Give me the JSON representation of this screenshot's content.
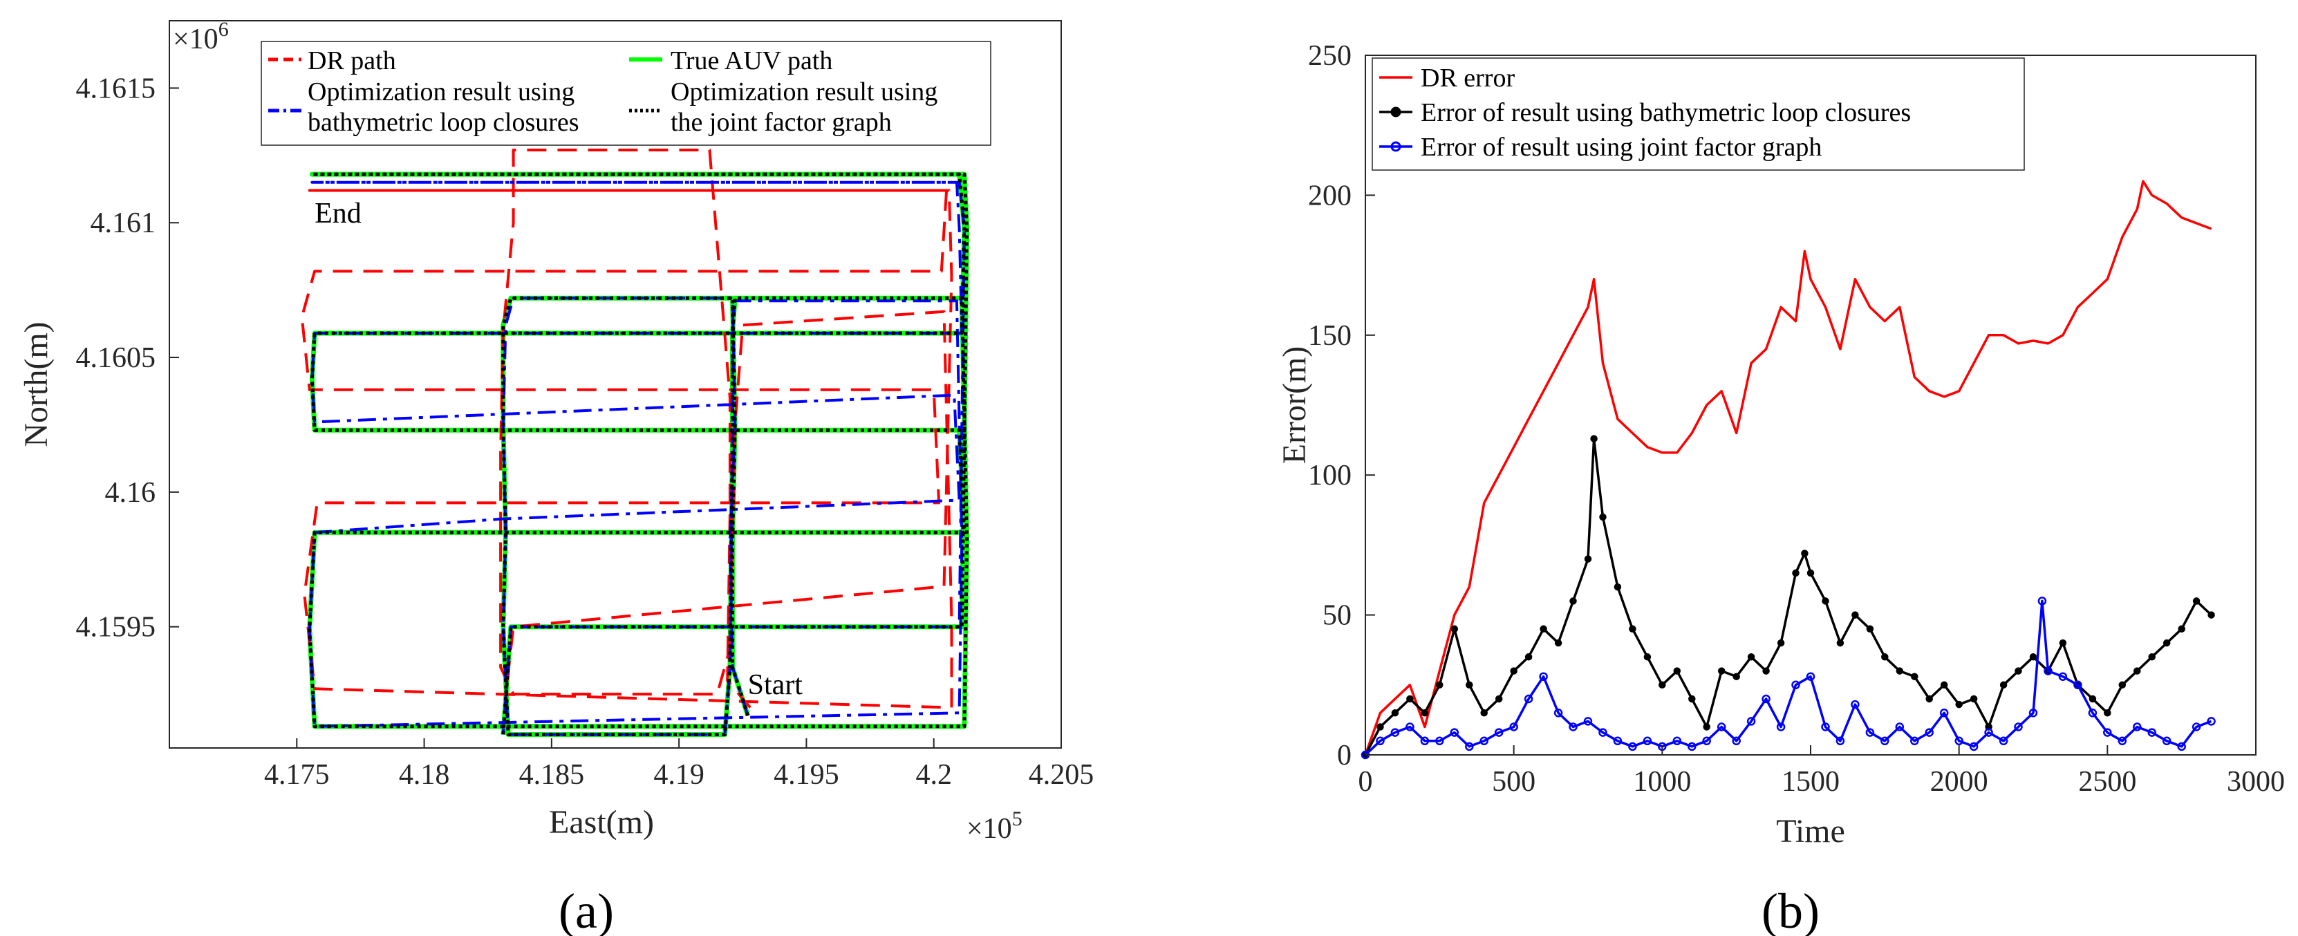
{
  "chart_data": [
    {
      "id": "a",
      "type": "line",
      "caption": "(a)",
      "xlabel": "East(m)",
      "ylabel": "North(m)",
      "x_exponent": "×10",
      "x_exponent_power": "5",
      "y_exponent": "×10",
      "y_exponent_power": "6",
      "xlim": [
        4.17,
        4.205
      ],
      "ylim": [
        4.15905,
        4.16175
      ],
      "x_ticks": [
        "4.175",
        "4.18",
        "4.185",
        "4.19",
        "4.195",
        "4.2",
        "4.205"
      ],
      "x_tick_values": [
        4.175,
        4.18,
        4.185,
        4.19,
        4.195,
        4.2,
        4.205
      ],
      "y_ticks": [
        "4.1595",
        "4.16",
        "4.1605",
        "4.161",
        "4.1615"
      ],
      "y_tick_values": [
        4.1595,
        4.16,
        4.1605,
        4.161,
        4.1615
      ],
      "annotations": [
        {
          "text": "End",
          "x": 4.1757,
          "y": 4.161
        },
        {
          "text": "Start",
          "x": 4.1927,
          "y": 4.15925
        }
      ],
      "legend": [
        {
          "label": "DR path",
          "color": "#ff0000",
          "style": "dashed"
        },
        {
          "label": "True AUV path",
          "color": "#00ff00",
          "style": "solid"
        },
        {
          "label": "Optimization result using",
          "label2": "bathymetric loop closures",
          "color": "#0000ff",
          "style": "dashdot"
        },
        {
          "label": "Optimization result using",
          "label2": "the joint factor graph",
          "color": "#000000",
          "style": "dotted"
        }
      ],
      "series": [
        {
          "name": "True AUV path",
          "color": "#00ff00",
          "x": [
            4.1927,
            4.1921,
            4.1921,
            4.1922,
            4.1921,
            4.1834,
            4.1831,
            4.1831,
            4.1832,
            4.1831,
            4.1833,
            4.1918,
            4.192,
            4.1921,
            4.1921,
            4.1922,
            4.2011,
            4.2013,
            4.2012,
            4.1757,
            4.1755,
            4.1757,
            4.183,
            4.2012,
            4.201,
            4.1757,
            4.1756,
            4.1757,
            4.2011,
            4.2012,
            4.201,
            4.1757,
            4.1756,
            4.1757,
            4.1834,
            4.2012,
            4.2013,
            4.2011,
            4.1834,
            4.1831
          ],
          "y": [
            4.15917,
            4.15935,
            4.15982,
            4.16025,
            4.16072,
            4.16072,
            4.16062,
            4.16025,
            4.15985,
            4.1595,
            4.1591,
            4.1591,
            4.15935,
            4.16022,
            4.16059,
            4.16072,
            4.16072,
            4.15982,
            4.15913,
            4.15913,
            4.15949,
            4.15985,
            4.15985,
            4.15985,
            4.16023,
            4.16023,
            4.16042,
            4.16059,
            4.16059,
            4.16098,
            4.16118,
            4.16118,
            4.16118,
            4.16118,
            4.16118,
            4.16118,
            4.16098,
            4.1595,
            4.1595,
            4.1591
          ]
        },
        {
          "name": "DR path",
          "color": "#ff0000",
          "x": [
            4.1928,
            4.1919,
            4.192,
            4.192,
            4.1912,
            4.1835,
            4.1835,
            4.1831,
            4.183,
            4.183,
            4.183,
            4.1835,
            4.1915,
            4.192,
            4.1922,
            4.1925,
            4.2004,
            4.2007,
            4.2007,
            4.1757,
            4.1753,
            4.1758,
            4.1829,
            4.2002,
            4.2,
            4.1755,
            4.1752,
            4.1757,
            4.2003,
            4.2005,
            4.2004,
            4.176,
            4.1758,
            4.1755,
            4.183,
            4.2006,
            4.2007,
            4.2004,
            4.1835,
            4.1832
          ],
          "y": [
            4.1592,
            4.1593,
            4.15992,
            4.16035,
            4.16127,
            4.16127,
            4.161,
            4.1606,
            4.16015,
            4.15965,
            4.15935,
            4.15925,
            4.15925,
            4.15942,
            4.16025,
            4.16062,
            4.16067,
            4.15952,
            4.1592,
            4.15927,
            4.15962,
            4.15996,
            4.15996,
            4.15996,
            4.16038,
            4.16038,
            4.16065,
            4.16082,
            4.16082,
            4.16112,
            4.16112,
            4.16112,
            4.16112,
            4.16112,
            4.16112,
            4.16112,
            4.1608,
            4.15965,
            4.1595,
            4.15925
          ]
        },
        {
          "name": "Optimization result using bathymetric loop closures",
          "color": "#0000ff",
          "x": [
            4.1927,
            4.1921,
            4.192,
            4.1922,
            4.1921,
            4.1835,
            4.1832,
            4.1831,
            4.1832,
            4.1831,
            4.1833,
            4.1918,
            4.192,
            4.1921,
            4.1921,
            4.1922,
            4.2009,
            4.2011,
            4.201,
            4.1757,
            4.1755,
            4.1757,
            4.183,
            4.201,
            4.2008,
            4.1757,
            4.1756,
            4.1757,
            4.2011,
            4.201,
            4.2009,
            4.1757,
            4.1756,
            4.1757,
            4.1834,
            4.201,
            4.2012,
            4.201,
            4.1834,
            4.1831
          ],
          "y": [
            4.15917,
            4.15935,
            4.15982,
            4.16025,
            4.16072,
            4.16072,
            4.16062,
            4.16025,
            4.15985,
            4.1595,
            4.1591,
            4.1591,
            4.15935,
            4.16022,
            4.16059,
            4.16071,
            4.16071,
            4.15982,
            4.15918,
            4.15913,
            4.15949,
            4.15985,
            4.1599,
            4.15997,
            4.16036,
            4.16026,
            4.16042,
            4.16059,
            4.16059,
            4.16098,
            4.16115,
            4.16115,
            4.16115,
            4.16115,
            4.16115,
            4.16115,
            4.16098,
            4.1595,
            4.1595,
            4.1591
          ]
        },
        {
          "name": "Optimization result using the joint factor graph",
          "color": "#000000",
          "x": [
            4.1927,
            4.1921,
            4.1921,
            4.1922,
            4.1921,
            4.1834,
            4.1831,
            4.1831,
            4.1832,
            4.1831,
            4.1833,
            4.1918,
            4.192,
            4.1921,
            4.1921,
            4.1922,
            4.2011,
            4.2013,
            4.2012,
            4.1757,
            4.1755,
            4.1757,
            4.183,
            4.2012,
            4.201,
            4.1757,
            4.1756,
            4.1757,
            4.2011,
            4.2012,
            4.201,
            4.1757,
            4.1756,
            4.1757,
            4.1834,
            4.2012,
            4.2013,
            4.2011,
            4.1834,
            4.1831
          ],
          "y": [
            4.15917,
            4.15935,
            4.15982,
            4.16025,
            4.16072,
            4.16072,
            4.16062,
            4.16025,
            4.15985,
            4.1595,
            4.1591,
            4.1591,
            4.15935,
            4.16022,
            4.16059,
            4.16072,
            4.16072,
            4.15982,
            4.15913,
            4.15913,
            4.15949,
            4.15985,
            4.15985,
            4.15985,
            4.16023,
            4.16023,
            4.16042,
            4.16059,
            4.16059,
            4.16098,
            4.16118,
            4.16118,
            4.16118,
            4.16118,
            4.16118,
            4.16118,
            4.16098,
            4.1595,
            4.1595,
            4.1591
          ]
        }
      ]
    },
    {
      "id": "b",
      "type": "line",
      "caption": "(b)",
      "xlabel": "Time",
      "ylabel": "Error(m)",
      "xlim": [
        0,
        3000
      ],
      "ylim": [
        0,
        250
      ],
      "x_ticks": [
        "0",
        "500",
        "1000",
        "1500",
        "2000",
        "2500",
        "3000"
      ],
      "x_tick_values": [
        0,
        500,
        1000,
        1500,
        2000,
        2500,
        3000
      ],
      "y_ticks": [
        "0",
        "50",
        "100",
        "150",
        "200",
        "250"
      ],
      "y_tick_values": [
        0,
        50,
        100,
        150,
        200,
        250
      ],
      "legend": [
        {
          "label": "DR error",
          "color": "#ff0000",
          "marker": "none"
        },
        {
          "label": "Error of result using bathymetric loop closures",
          "color": "#000000",
          "marker": "dot"
        },
        {
          "label": "Error of result using joint factor graph",
          "color": "#0000ff",
          "marker": "circle"
        }
      ],
      "series": [
        {
          "name": "DR error",
          "color": "#ff0000",
          "x": [
            0,
            50,
            100,
            150,
            200,
            250,
            300,
            350,
            400,
            450,
            500,
            550,
            600,
            650,
            700,
            750,
            770,
            800,
            850,
            900,
            950,
            1000,
            1050,
            1100,
            1150,
            1200,
            1250,
            1300,
            1350,
            1400,
            1450,
            1480,
            1500,
            1550,
            1600,
            1650,
            1700,
            1750,
            1800,
            1850,
            1900,
            1950,
            2000,
            2050,
            2100,
            2150,
            2200,
            2250,
            2300,
            2350,
            2400,
            2450,
            2500,
            2550,
            2600,
            2620,
            2650,
            2700,
            2750,
            2800,
            2850
          ],
          "y": [
            0,
            15,
            20,
            25,
            10,
            30,
            50,
            60,
            90,
            100,
            110,
            120,
            130,
            140,
            150,
            160,
            170,
            140,
            120,
            115,
            110,
            108,
            108,
            115,
            125,
            130,
            115,
            140,
            145,
            160,
            155,
            180,
            170,
            160,
            145,
            170,
            160,
            155,
            160,
            135,
            130,
            128,
            130,
            140,
            150,
            150,
            147,
            148,
            147,
            150,
            160,
            165,
            170,
            185,
            195,
            205,
            200,
            197,
            192,
            190,
            188
          ]
        },
        {
          "name": "Error of result using bathymetric loop closures",
          "color": "#000000",
          "x": [
            0,
            50,
            100,
            150,
            200,
            250,
            300,
            350,
            400,
            450,
            500,
            550,
            600,
            650,
            700,
            750,
            770,
            800,
            850,
            900,
            950,
            1000,
            1050,
            1100,
            1150,
            1200,
            1250,
            1300,
            1350,
            1400,
            1450,
            1480,
            1500,
            1550,
            1600,
            1650,
            1700,
            1750,
            1800,
            1850,
            1900,
            1950,
            2000,
            2050,
            2100,
            2150,
            2200,
            2250,
            2300,
            2350,
            2400,
            2450,
            2500,
            2550,
            2600,
            2650,
            2700,
            2750,
            2800,
            2850
          ],
          "y": [
            0,
            10,
            15,
            20,
            15,
            25,
            45,
            25,
            15,
            20,
            30,
            35,
            45,
            40,
            55,
            70,
            113,
            85,
            60,
            45,
            35,
            25,
            30,
            20,
            10,
            30,
            28,
            35,
            30,
            40,
            65,
            72,
            65,
            55,
            40,
            50,
            45,
            35,
            30,
            28,
            20,
            25,
            18,
            20,
            10,
            25,
            30,
            35,
            30,
            40,
            25,
            20,
            15,
            25,
            30,
            35,
            40,
            45,
            55,
            50
          ]
        },
        {
          "name": "Error of result using joint factor graph",
          "color": "#0000ff",
          "x": [
            0,
            50,
            100,
            150,
            200,
            250,
            300,
            350,
            400,
            450,
            500,
            550,
            600,
            650,
            700,
            750,
            800,
            850,
            900,
            950,
            1000,
            1050,
            1100,
            1150,
            1200,
            1250,
            1300,
            1350,
            1400,
            1450,
            1500,
            1550,
            1600,
            1650,
            1700,
            1750,
            1800,
            1850,
            1900,
            1950,
            2000,
            2050,
            2100,
            2150,
            2200,
            2250,
            2280,
            2300,
            2350,
            2400,
            2450,
            2500,
            2550,
            2600,
            2650,
            2700,
            2750,
            2800,
            2850
          ],
          "y": [
            0,
            5,
            8,
            10,
            5,
            5,
            8,
            3,
            5,
            8,
            10,
            20,
            28,
            15,
            10,
            12,
            8,
            5,
            3,
            5,
            3,
            5,
            3,
            5,
            10,
            5,
            12,
            20,
            10,
            25,
            28,
            10,
            5,
            18,
            8,
            5,
            10,
            5,
            8,
            15,
            5,
            3,
            8,
            5,
            10,
            15,
            55,
            30,
            28,
            25,
            15,
            8,
            5,
            10,
            8,
            5,
            3,
            10,
            12
          ]
        }
      ]
    }
  ]
}
